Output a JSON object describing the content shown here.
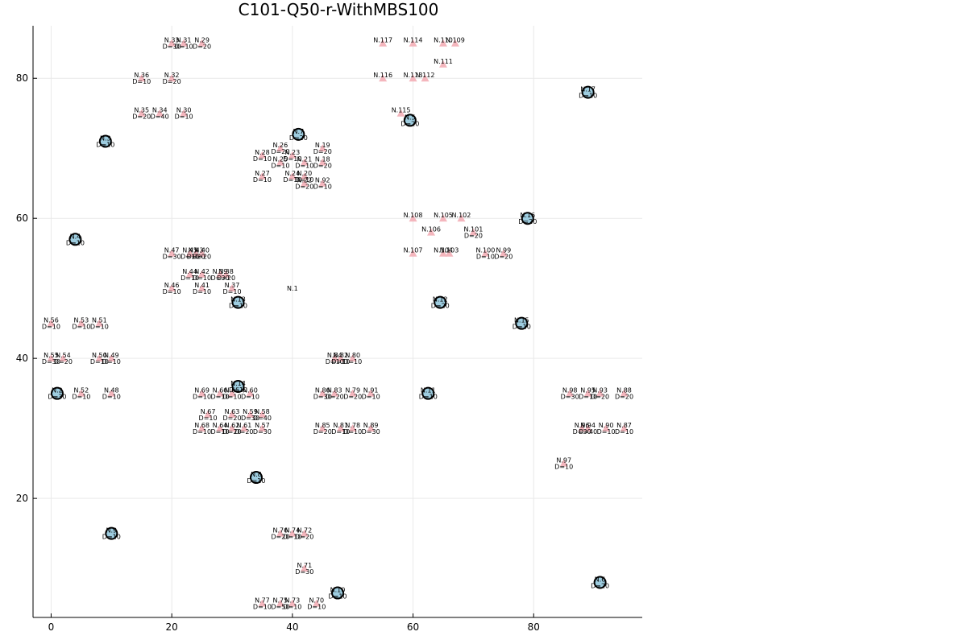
{
  "chart_data": {
    "type": "scatter",
    "title": "C101-Q50-r-WithMBS100",
    "xlim": [
      -3,
      98
    ],
    "ylim": [
      3,
      87.5
    ],
    "xticks": [
      0,
      20,
      40,
      60,
      80
    ],
    "yticks": [
      20,
      40,
      60,
      80
    ],
    "grid": true,
    "colors": {
      "customer_marker": "#f4b6bd",
      "station_fill": "#9ecde0",
      "station_stroke": "#000000"
    },
    "depot": {
      "x": 40,
      "y": 50,
      "label": "N.1"
    },
    "stations": [
      {
        "x": 41,
        "y": 72,
        "label": "N.7",
        "demand": "D=20"
      },
      {
        "x": 59.5,
        "y": 74,
        "label": "N.5",
        "demand": "D=20"
      },
      {
        "x": 89,
        "y": 78,
        "label": "N.17",
        "demand": "D=10"
      },
      {
        "x": 9,
        "y": 71,
        "label": "N.3",
        "demand": "D=10"
      },
      {
        "x": 4,
        "y": 57,
        "label": "N.4",
        "demand": "D=10"
      },
      {
        "x": 79,
        "y": 60,
        "label": "N.16",
        "demand": "D=20"
      },
      {
        "x": 31,
        "y": 48,
        "label": "N.13",
        "demand": "D=10"
      },
      {
        "x": 64.5,
        "y": 48,
        "label": "N.12",
        "demand": "D=20"
      },
      {
        "x": 78,
        "y": 45,
        "label": "N.15",
        "demand": "D=10"
      },
      {
        "x": 1,
        "y": 35,
        "label": "N.2",
        "demand": "D=30"
      },
      {
        "x": 31,
        "y": 36,
        "label": "N.14",
        "demand": "D=10"
      },
      {
        "x": 62.5,
        "y": 35,
        "label": "N.11",
        "demand": "D=10"
      },
      {
        "x": 34,
        "y": 23,
        "label": "N.8",
        "demand": "D=10"
      },
      {
        "x": 10,
        "y": 15,
        "label": "N.9",
        "demand": "D=10"
      },
      {
        "x": 47.5,
        "y": 6.5,
        "label": "N.10",
        "demand": "D=10"
      },
      {
        "x": 91,
        "y": 8,
        "label": "N.6",
        "demand": "D=20"
      }
    ],
    "customers": [
      {
        "x": 20,
        "y": 85,
        "label": "N.33",
        "demand": "D=30"
      },
      {
        "x": 22,
        "y": 85,
        "label": "N.31",
        "demand": "D=10"
      },
      {
        "x": 25,
        "y": 85,
        "label": "N.29",
        "demand": "D=20"
      },
      {
        "x": 15,
        "y": 80,
        "label": "N.36",
        "demand": "D=10"
      },
      {
        "x": 20,
        "y": 80,
        "label": "N.32",
        "demand": "D=20"
      },
      {
        "x": 15,
        "y": 75,
        "label": "N.35",
        "demand": "D=20"
      },
      {
        "x": 18,
        "y": 75,
        "label": "N.34",
        "demand": "D=40"
      },
      {
        "x": 22,
        "y": 75,
        "label": "N.30",
        "demand": "D=10"
      },
      {
        "x": 55,
        "y": 85,
        "label": "N.117",
        "demand": ""
      },
      {
        "x": 60,
        "y": 85,
        "label": "N.114",
        "demand": ""
      },
      {
        "x": 65,
        "y": 85,
        "label": "N.110",
        "demand": ""
      },
      {
        "x": 67,
        "y": 85,
        "label": "N.109",
        "demand": ""
      },
      {
        "x": 65,
        "y": 82,
        "label": "N.111",
        "demand": ""
      },
      {
        "x": 55,
        "y": 80,
        "label": "N.116",
        "demand": ""
      },
      {
        "x": 60,
        "y": 80,
        "label": "N.113",
        "demand": ""
      },
      {
        "x": 62,
        "y": 80,
        "label": "N.112",
        "demand": ""
      },
      {
        "x": 58,
        "y": 75,
        "label": "N.115",
        "demand": ""
      },
      {
        "x": 38,
        "y": 70,
        "label": "N.26",
        "demand": "D=20"
      },
      {
        "x": 45,
        "y": 70,
        "label": "N.19",
        "demand": "D=20"
      },
      {
        "x": 35,
        "y": 69,
        "label": "N.28",
        "demand": "D=10"
      },
      {
        "x": 40,
        "y": 69,
        "label": "N.23",
        "demand": "D=10"
      },
      {
        "x": 38,
        "y": 68,
        "label": "N.25",
        "demand": "D=10"
      },
      {
        "x": 42,
        "y": 68,
        "label": "N.21",
        "demand": "D=10"
      },
      {
        "x": 45,
        "y": 68,
        "label": "N.18",
        "demand": "D=20"
      },
      {
        "x": 35,
        "y": 66,
        "label": "N.27",
        "demand": "D=10"
      },
      {
        "x": 40,
        "y": 66,
        "label": "N.24",
        "demand": "D=10"
      },
      {
        "x": 42,
        "y": 66,
        "label": "N.20",
        "demand": "D=10"
      },
      {
        "x": 42,
        "y": 65,
        "label": "N.22",
        "demand": "D=20"
      },
      {
        "x": 45,
        "y": 65,
        "label": "N.92",
        "demand": "D=10"
      },
      {
        "x": 60,
        "y": 60,
        "label": "N.108",
        "demand": ""
      },
      {
        "x": 65,
        "y": 60,
        "label": "N.105",
        "demand": ""
      },
      {
        "x": 68,
        "y": 60,
        "label": "N.102",
        "demand": ""
      },
      {
        "x": 63,
        "y": 58,
        "label": "N.106",
        "demand": ""
      },
      {
        "x": 70,
        "y": 58,
        "label": "N.101",
        "demand": "D=20"
      },
      {
        "x": 60,
        "y": 55,
        "label": "N.107",
        "demand": ""
      },
      {
        "x": 65,
        "y": 55,
        "label": "N.104",
        "demand": ""
      },
      {
        "x": 66,
        "y": 55,
        "label": "N.103",
        "demand": ""
      },
      {
        "x": 72,
        "y": 55,
        "label": "N.100",
        "demand": "D=10"
      },
      {
        "x": 75,
        "y": 55,
        "label": "N.99",
        "demand": "D=20"
      },
      {
        "x": 20,
        "y": 55,
        "label": "N.47",
        "demand": "D=30"
      },
      {
        "x": 23,
        "y": 55,
        "label": "N.45",
        "demand": "D=10"
      },
      {
        "x": 24,
        "y": 55,
        "label": "N.43",
        "demand": "D=20"
      },
      {
        "x": 25,
        "y": 55,
        "label": "N.40",
        "demand": "D=20"
      },
      {
        "x": 23,
        "y": 52,
        "label": "N.44",
        "demand": "D=10"
      },
      {
        "x": 25,
        "y": 52,
        "label": "N.42",
        "demand": "D=10"
      },
      {
        "x": 28,
        "y": 52,
        "label": "N.39",
        "demand": "D=30"
      },
      {
        "x": 29,
        "y": 52,
        "label": "N.38",
        "demand": "D=20"
      },
      {
        "x": 20,
        "y": 50,
        "label": "N.46",
        "demand": "D=10"
      },
      {
        "x": 25,
        "y": 50,
        "label": "N.41",
        "demand": "D=10"
      },
      {
        "x": 30,
        "y": 50,
        "label": "N.37",
        "demand": "D=10"
      },
      {
        "x": 0,
        "y": 45,
        "label": "N.56",
        "demand": "D=10"
      },
      {
        "x": 5,
        "y": 45,
        "label": "N.53",
        "demand": "D=10"
      },
      {
        "x": 8,
        "y": 45,
        "label": "N.51",
        "demand": "D=10"
      },
      {
        "x": 0,
        "y": 40,
        "label": "N.55",
        "demand": "D=30"
      },
      {
        "x": 2,
        "y": 40,
        "label": "N.54",
        "demand": "D=20"
      },
      {
        "x": 8,
        "y": 40,
        "label": "N.50",
        "demand": "D=10"
      },
      {
        "x": 10,
        "y": 40,
        "label": "N.49",
        "demand": "D=10"
      },
      {
        "x": 47,
        "y": 40,
        "label": "N.84",
        "demand": "D=10"
      },
      {
        "x": 48,
        "y": 40,
        "label": "N.82",
        "demand": "D=10"
      },
      {
        "x": 50,
        "y": 40,
        "label": "N.80",
        "demand": "D=10"
      },
      {
        "x": 5,
        "y": 35,
        "label": "N.52",
        "demand": "D=10"
      },
      {
        "x": 10,
        "y": 35,
        "label": "N.48",
        "demand": "D=10"
      },
      {
        "x": 25,
        "y": 35,
        "label": "N.69",
        "demand": "D=10"
      },
      {
        "x": 28,
        "y": 35,
        "label": "N.66",
        "demand": "D=10"
      },
      {
        "x": 30,
        "y": 35,
        "label": "N.65",
        "demand": "D=10"
      },
      {
        "x": 33,
        "y": 35,
        "label": "N.60",
        "demand": "D=10"
      },
      {
        "x": 45,
        "y": 35,
        "label": "N.86",
        "demand": "D=30"
      },
      {
        "x": 47,
        "y": 35,
        "label": "N.83",
        "demand": "D=20"
      },
      {
        "x": 50,
        "y": 35,
        "label": "N.79",
        "demand": "D=20"
      },
      {
        "x": 53,
        "y": 35,
        "label": "N.91",
        "demand": "D=10"
      },
      {
        "x": 86,
        "y": 35,
        "label": "N.98",
        "demand": "D=30"
      },
      {
        "x": 89,
        "y": 35,
        "label": "N.95",
        "demand": "D=10"
      },
      {
        "x": 91,
        "y": 35,
        "label": "N.93",
        "demand": "D=20"
      },
      {
        "x": 95,
        "y": 35,
        "label": "N.88",
        "demand": "D=20"
      },
      {
        "x": 26,
        "y": 32,
        "label": "N.67",
        "demand": "D=10"
      },
      {
        "x": 30,
        "y": 32,
        "label": "N.63",
        "demand": "D=20"
      },
      {
        "x": 33,
        "y": 32,
        "label": "N.59",
        "demand": "D=30"
      },
      {
        "x": 35,
        "y": 32,
        "label": "N.58",
        "demand": "D=40"
      },
      {
        "x": 25,
        "y": 30,
        "label": "N.68",
        "demand": "D=10"
      },
      {
        "x": 28,
        "y": 30,
        "label": "N.64",
        "demand": "D=10"
      },
      {
        "x": 30,
        "y": 30,
        "label": "N.62",
        "demand": "D=20"
      },
      {
        "x": 32,
        "y": 30,
        "label": "N.61",
        "demand": "D=20"
      },
      {
        "x": 35,
        "y": 30,
        "label": "N.57",
        "demand": "D=30"
      },
      {
        "x": 45,
        "y": 30,
        "label": "N.85",
        "demand": "D=20"
      },
      {
        "x": 48,
        "y": 30,
        "label": "N.81",
        "demand": "D=10"
      },
      {
        "x": 50,
        "y": 30,
        "label": "N.78",
        "demand": "D=10"
      },
      {
        "x": 53,
        "y": 30,
        "label": "N.89",
        "demand": "D=30"
      },
      {
        "x": 88,
        "y": 30,
        "label": "N.96",
        "demand": "D=30"
      },
      {
        "x": 89,
        "y": 30,
        "label": "N.94",
        "demand": "D=40"
      },
      {
        "x": 92,
        "y": 30,
        "label": "N.90",
        "demand": "D=10"
      },
      {
        "x": 95,
        "y": 30,
        "label": "N.87",
        "demand": "D=10"
      },
      {
        "x": 85,
        "y": 25,
        "label": "N.97",
        "demand": "D=10"
      },
      {
        "x": 38,
        "y": 15,
        "label": "N.76",
        "demand": "D=20"
      },
      {
        "x": 40,
        "y": 15,
        "label": "N.74",
        "demand": "D=10"
      },
      {
        "x": 42,
        "y": 15,
        "label": "N.72",
        "demand": "D=20"
      },
      {
        "x": 42,
        "y": 10,
        "label": "N.71",
        "demand": "D=30"
      },
      {
        "x": 35,
        "y": 5,
        "label": "N.77",
        "demand": "D=10"
      },
      {
        "x": 38,
        "y": 5,
        "label": "N.75",
        "demand": "D=50"
      },
      {
        "x": 40,
        "y": 5,
        "label": "N.73",
        "demand": "D=10"
      },
      {
        "x": 44,
        "y": 5,
        "label": "N.70",
        "demand": "D=10"
      }
    ]
  }
}
